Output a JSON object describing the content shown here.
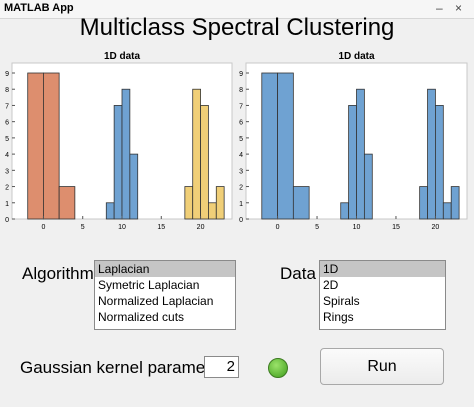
{
  "window": {
    "title": "MATLAB App",
    "minimize": "–",
    "close": "×"
  },
  "app_title": "Multiclass Spectral Clustering",
  "algorithm_label": "Algorithm",
  "algorithm_options": [
    "Laplacian",
    "Symetric Laplacian",
    "Normalized Laplacian",
    "Normalized cuts"
  ],
  "algorithm_selected": 0,
  "data_label": "Data",
  "data_options": [
    "1D",
    "2D",
    "Spirals",
    "Rings"
  ],
  "data_selected": 0,
  "gaussian_label": "Gaussian kernel parameter",
  "gaussian_value": "2",
  "run_label": "Run",
  "colors": {
    "orange": "#dd8e6e",
    "blue": "#6fa2d2",
    "yellow": "#f0cf78",
    "lamp": "#4cbb22"
  },
  "chart_data": [
    {
      "type": "bar",
      "title": "1D data",
      "xlim": [
        -4,
        24
      ],
      "ylim": [
        0,
        9
      ],
      "xticks": [
        0,
        5,
        10,
        15,
        20
      ],
      "yticks": [
        0,
        1,
        2,
        3,
        4,
        5,
        6,
        7,
        8,
        9
      ],
      "series": [
        {
          "color": "orange",
          "bins": [
            [
              -2,
              0,
              9
            ],
            [
              0,
              2,
              9
            ],
            [
              2,
              4,
              2
            ]
          ]
        },
        {
          "color": "blue",
          "bins": [
            [
              8,
              9,
              1
            ],
            [
              9,
              10,
              7
            ],
            [
              10,
              11,
              8
            ],
            [
              11,
              12,
              4
            ]
          ]
        },
        {
          "color": "yellow",
          "bins": [
            [
              18,
              19,
              2
            ],
            [
              19,
              20,
              8
            ],
            [
              20,
              21,
              7
            ],
            [
              21,
              22,
              1
            ],
            [
              22,
              23,
              2
            ]
          ]
        }
      ]
    },
    {
      "type": "bar",
      "title": "1D data",
      "xlim": [
        -4,
        24
      ],
      "ylim": [
        0,
        9
      ],
      "xticks": [
        0,
        5,
        10,
        15,
        20
      ],
      "yticks": [
        0,
        1,
        2,
        3,
        4,
        5,
        6,
        7,
        8,
        9
      ],
      "series": [
        {
          "color": "blue",
          "bins": [
            [
              -2,
              0,
              9
            ],
            [
              0,
              2,
              9
            ],
            [
              2,
              4,
              2
            ],
            [
              8,
              9,
              1
            ],
            [
              9,
              10,
              7
            ],
            [
              10,
              11,
              8
            ],
            [
              11,
              12,
              4
            ],
            [
              18,
              19,
              2
            ],
            [
              19,
              20,
              8
            ],
            [
              20,
              21,
              7
            ],
            [
              21,
              22,
              1
            ],
            [
              22,
              23,
              2
            ]
          ]
        }
      ]
    }
  ]
}
